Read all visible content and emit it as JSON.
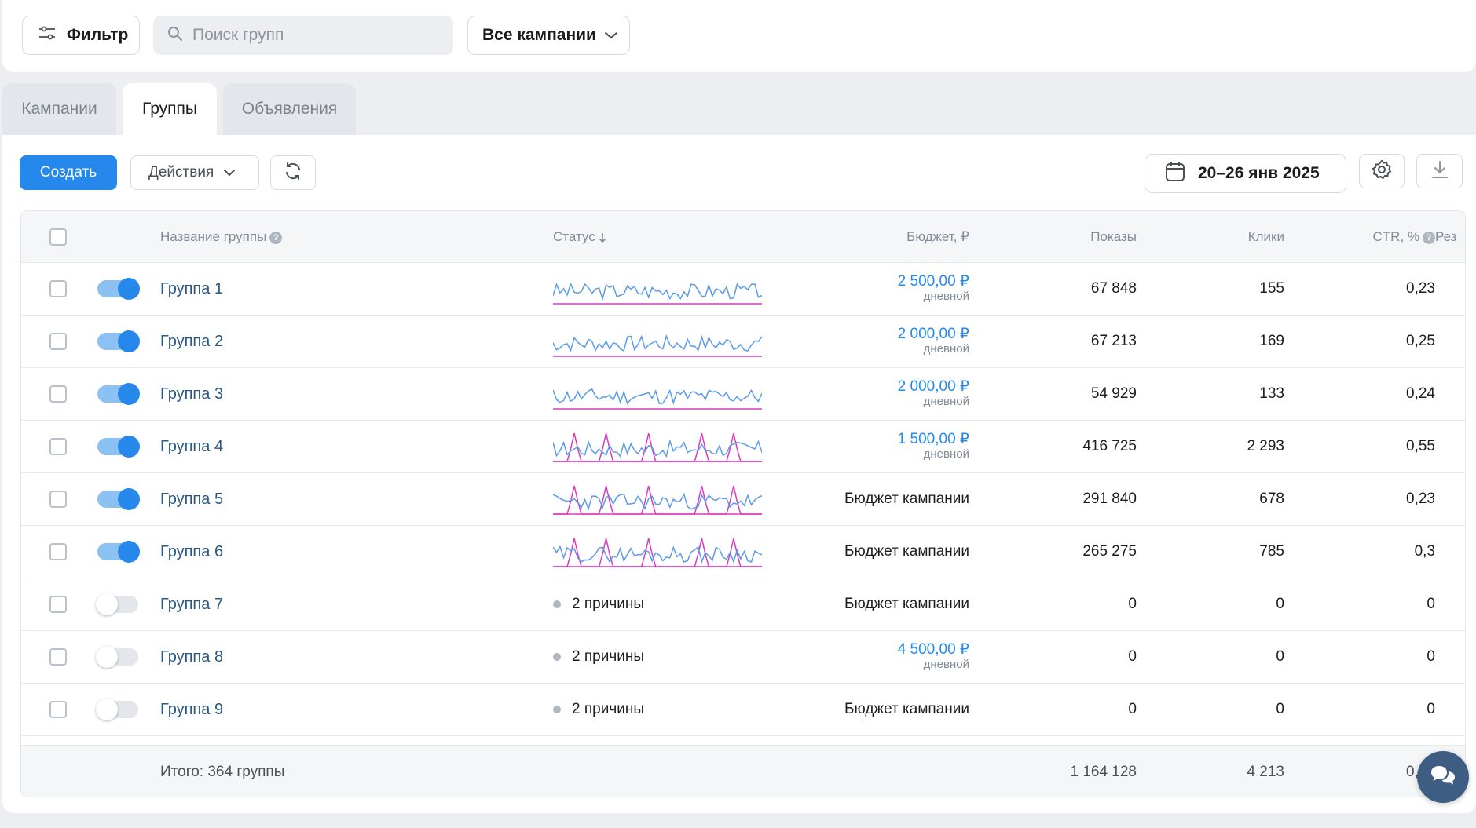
{
  "toolbar": {
    "filter_label": "Фильтр",
    "search_placeholder": "Поиск групп",
    "campaign_select": "Все кампании"
  },
  "tabs": [
    {
      "label": "Кампании",
      "active": false
    },
    {
      "label": "Группы",
      "active": true
    },
    {
      "label": "Объявления",
      "active": false
    }
  ],
  "actions": {
    "create_label": "Создать",
    "actions_label": "Действия",
    "date_range": "20–26 янв 2025"
  },
  "table": {
    "columns": {
      "name": "Название группы",
      "status": "Статус",
      "budget": "Бюджет, ₽",
      "shows": "Показы",
      "clicks": "Клики",
      "ctr": "CTR, %",
      "result_partial": "Рез"
    },
    "rows": [
      {
        "name": "Группа 1",
        "enabled": true,
        "status": "",
        "sparkline": "a",
        "budget_amount": "2 500,00 ₽",
        "budget_sub": "дневной",
        "budget_text": "",
        "shows": "67 848",
        "clicks": "155",
        "ctr": "0,23"
      },
      {
        "name": "Группа 2",
        "enabled": true,
        "status": "",
        "sparkline": "b",
        "budget_amount": "2 000,00 ₽",
        "budget_sub": "дневной",
        "budget_text": "",
        "shows": "67 213",
        "clicks": "169",
        "ctr": "0,25"
      },
      {
        "name": "Группа 3",
        "enabled": true,
        "status": "",
        "sparkline": "c",
        "budget_amount": "2 000,00 ₽",
        "budget_sub": "дневной",
        "budget_text": "",
        "shows": "54 929",
        "clicks": "133",
        "ctr": "0,24"
      },
      {
        "name": "Группа 4",
        "enabled": true,
        "status": "",
        "sparkline": "d",
        "budget_amount": "1 500,00 ₽",
        "budget_sub": "дневной",
        "budget_text": "",
        "shows": "416 725",
        "clicks": "2 293",
        "ctr": "0,55"
      },
      {
        "name": "Группа 5",
        "enabled": true,
        "status": "",
        "sparkline": "e",
        "budget_amount": "",
        "budget_sub": "",
        "budget_text": "Бюджет кампании",
        "shows": "291 840",
        "clicks": "678",
        "ctr": "0,23"
      },
      {
        "name": "Группа 6",
        "enabled": true,
        "status": "",
        "sparkline": "f",
        "budget_amount": "",
        "budget_sub": "",
        "budget_text": "Бюджет кампании",
        "shows": "265 275",
        "clicks": "785",
        "ctr": "0,3"
      },
      {
        "name": "Группа 7",
        "enabled": false,
        "status": "2 причины",
        "sparkline": "",
        "budget_amount": "",
        "budget_sub": "",
        "budget_text": "Бюджет кампании",
        "shows": "0",
        "clicks": "0",
        "ctr": "0"
      },
      {
        "name": "Группа 8",
        "enabled": false,
        "status": "2 причины",
        "sparkline": "",
        "budget_amount": "4 500,00 ₽",
        "budget_sub": "дневной",
        "budget_text": "",
        "shows": "0",
        "clicks": "0",
        "ctr": "0"
      },
      {
        "name": "Группа 9",
        "enabled": false,
        "status": "2 причины",
        "sparkline": "",
        "budget_amount": "",
        "budget_sub": "",
        "budget_text": "Бюджет кампании",
        "shows": "0",
        "clicks": "0",
        "ctr": "0"
      }
    ],
    "totals": {
      "label": "Итого: 364 группы",
      "shows": "1 164 128",
      "clicks": "4 213",
      "ctr": "0,36"
    }
  },
  "colors": {
    "accent": "#2688eb",
    "link": "#2a5885",
    "sparkline_blue": "#5a9be6",
    "sparkline_pink": "#d93bbd"
  }
}
